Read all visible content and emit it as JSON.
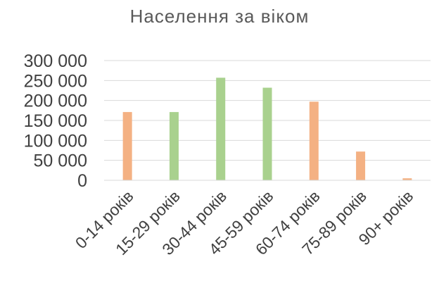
{
  "chart_data": {
    "type": "bar",
    "title": "Населення за віком",
    "xlabel": "",
    "ylabel": "",
    "categories": [
      "0-14 років",
      "15-29 років",
      "30-44 років",
      "45-59 років",
      "60-74 років",
      "75-89 років",
      "90+ років"
    ],
    "values": [
      171000,
      171000,
      257000,
      232000,
      197000,
      72000,
      5000
    ],
    "bar_colors": [
      "#F4B183",
      "#A9D18E",
      "#A9D18E",
      "#A9D18E",
      "#F4B183",
      "#F4B183",
      "#F4B183"
    ],
    "yticks": [
      0,
      50000,
      100000,
      150000,
      200000,
      250000,
      300000
    ],
    "ytick_labels": [
      "0",
      "50 000",
      "100 000",
      "150 000",
      "200 000",
      "250 000",
      "300 000"
    ],
    "ylim": [
      0,
      300000
    ],
    "grid": true,
    "legend": "none"
  }
}
